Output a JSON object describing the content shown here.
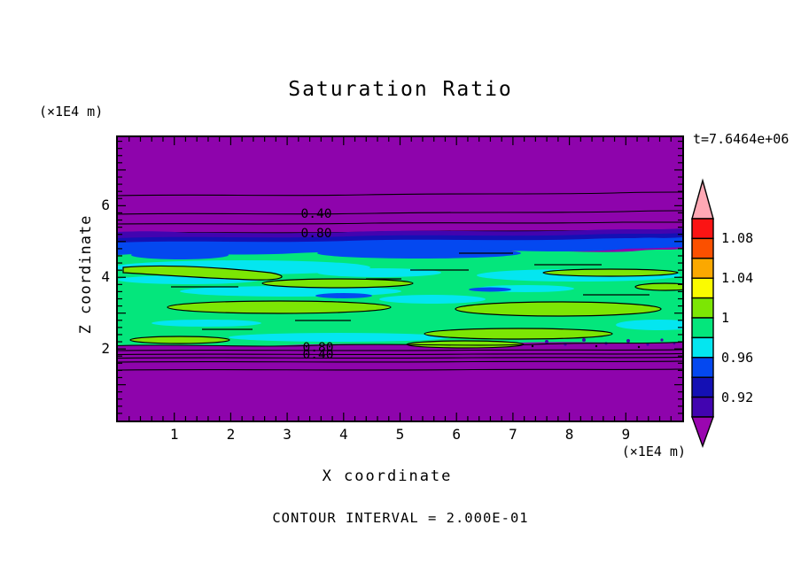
{
  "title": "Saturation Ratio",
  "time_label": "t=7.6464e+06",
  "footer": "CONTOUR INTERVAL = 2.000E-01",
  "x_axis": {
    "label": "X coordinate",
    "unit": "(×1E4 m)",
    "ticks": [
      "1",
      "2",
      "3",
      "4",
      "5",
      "6",
      "7",
      "8",
      "9"
    ]
  },
  "y_axis": {
    "label": "Z coordinate",
    "unit": "(×1E4 m)",
    "ticks": [
      "6",
      "4",
      "2"
    ]
  },
  "contour_labels": {
    "upper_040": "0.40",
    "upper_080": "0.80",
    "lower_080": "0.80",
    "lower_040": "0.40"
  },
  "colorbar": {
    "labels": [
      "1.08",
      "1.04",
      "1",
      "0.96",
      "0.92"
    ],
    "arrow_top": {
      "color": "#FFA8B4",
      "range": ">1.10"
    },
    "segments": [
      {
        "color": "#FB1414",
        "range": "1.08-1.10"
      },
      {
        "color": "#FB5000",
        "range": "1.06-1.08"
      },
      {
        "color": "#FBA800",
        "range": "1.04-1.06"
      },
      {
        "color": "#FBFB00",
        "range": "1.02-1.04"
      },
      {
        "color": "#7CE604",
        "range": "1.00-1.02"
      },
      {
        "color": "#04E67C",
        "range": "0.98-1.00"
      },
      {
        "color": "#04E6F0",
        "range": "0.96-0.98"
      },
      {
        "color": "#0448F0",
        "range": "0.94-0.96"
      },
      {
        "color": "#1410B4",
        "range": "0.92-0.94"
      },
      {
        "color": "#4204B0",
        "range": "0.90-0.92"
      }
    ],
    "arrow_bottom": {
      "color": "#9A06B0",
      "range": "<0.90"
    }
  },
  "colors": {
    "purple": "#8E04AC",
    "dark_violet": "#4204B0",
    "navy": "#1410B4",
    "blue": "#0448F0",
    "cyan": "#04E6F0",
    "spring_green": "#04E67C",
    "chartreuse": "#7CE604",
    "yellow": "#FBFB00",
    "orange": "#FBA800",
    "orange_red": "#FB5000",
    "red": "#FB1414",
    "pink": "#FFA8B4",
    "line": "#000000"
  },
  "chart_data": {
    "type": "heatmap",
    "title": "Saturation Ratio",
    "xlabel": "X coordinate (×1E4 m)",
    "ylabel": "Z coordinate (×1E4 m)",
    "x_range": [
      0,
      10
    ],
    "y_range": [
      0,
      7.9
    ],
    "time_label": "t=7.6464e+06",
    "contour_interval": 0.2,
    "line_contours_visible": [
      0.2,
      0.4,
      0.6,
      0.8,
      1.0
    ],
    "colorbar": {
      "tick_labels": [
        1.08,
        1.04,
        1,
        0.96,
        0.92
      ],
      "segment_ranges": [
        [
          1.08,
          1.1
        ],
        [
          1.06,
          1.08
        ],
        [
          1.04,
          1.06
        ],
        [
          1.02,
          1.04
        ],
        [
          1.0,
          1.02
        ],
        [
          0.98,
          1.0
        ],
        [
          0.96,
          0.98
        ],
        [
          0.94,
          0.96
        ],
        [
          0.92,
          0.94
        ],
        [
          0.9,
          0.92
        ]
      ],
      "above_range": ">1.10",
      "below_range": "<0.90",
      "position": "right"
    },
    "layers": [
      {
        "z_range": [
          6.3,
          7.9
        ],
        "ratio": "<0.2",
        "fill": "purple (below colorbar range)"
      },
      {
        "z_range": [
          5.3,
          6.3
        ],
        "ratio": "0.2 to 0.8",
        "note": "horizontal line contours 0.20 at z≈6.3, 0.40 at z≈5.8, 0.60 at z≈5.5, 0.80 at z≈5.3; labels 0.40 and 0.80 printed near x≈3.5"
      },
      {
        "z_range": [
          4.6,
          5.3
        ],
        "ratio": "0.90 to 0.96",
        "fill": "dark violet / navy / blue horizontal bands"
      },
      {
        "z_range": [
          2.1,
          4.6
        ],
        "ratio": "0.96 to 1.02",
        "fill": "spring-green and cyan streaked band with black-outlined chartreuse patches (ratio just above 1.0)"
      },
      {
        "z_range": [
          1.4,
          2.1
        ],
        "ratio": "0.8 down to 0.2",
        "note": "tightly spaced line contours; overlapping labels 0.80 and 0.40 near x≈3.5"
      },
      {
        "z_range": [
          0,
          1.4
        ],
        "ratio": "<0.2",
        "fill": "purple (below colorbar range)"
      }
    ],
    "grid": false,
    "legend_position": "right colorbar with over/under range arrows"
  }
}
